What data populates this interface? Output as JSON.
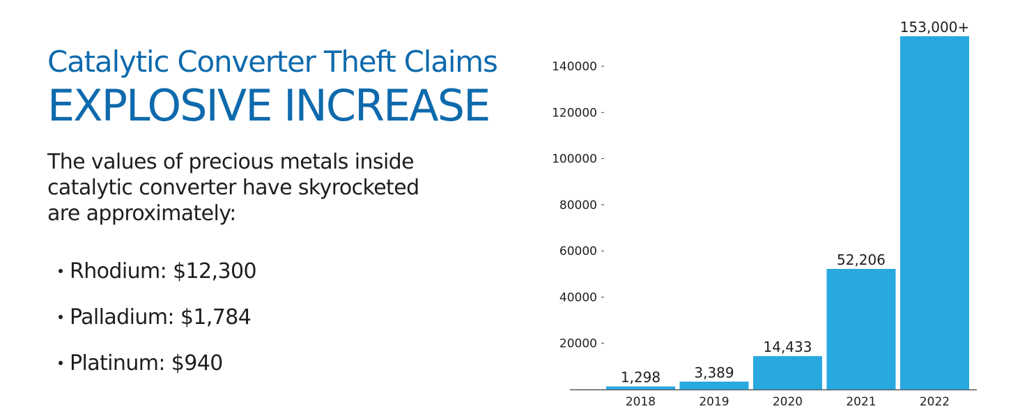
{
  "heading": {
    "line1": "Catalytic Converter Theft Claims",
    "line2": "EXPLOSIVE INCREASE"
  },
  "intro": "The values of precious metals inside catalytic converter have skyrocketed are approximately:",
  "metals": [
    {
      "label": "Rhodium: $12,300"
    },
    {
      "label": "Palladium: $1,784"
    },
    {
      "label": "Platinum: $940"
    }
  ],
  "colors": {
    "heading": "#0e6aad",
    "bar": "#29a8e0",
    "text": "#1e1e1e"
  },
  "chart_data": {
    "type": "bar",
    "categories": [
      "2018",
      "2019",
      "2020",
      "2021",
      "2022"
    ],
    "values": [
      1298,
      3389,
      14433,
      52206,
      153000
    ],
    "data_labels": [
      "1,298",
      "3,389",
      "14,433",
      "52,206",
      "153,000+"
    ],
    "yticks": [
      20000,
      40000,
      60000,
      80000,
      100000,
      120000,
      140000
    ],
    "ytick_labels": [
      "20000",
      "40000",
      "60000",
      "80000",
      "100000",
      "120000",
      "140000"
    ],
    "ylim": [
      0,
      153000
    ],
    "grid": false,
    "legend": "none",
    "title": "",
    "xlabel": "",
    "ylabel": ""
  }
}
